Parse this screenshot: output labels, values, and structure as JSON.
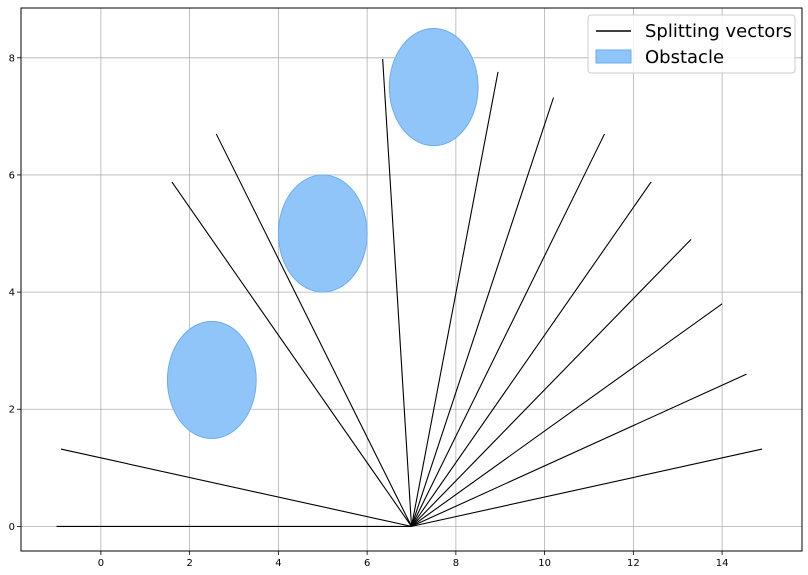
{
  "chart_data": {
    "type": "line",
    "title": "",
    "xlabel": "",
    "ylabel": "",
    "xlim": [
      -1.8,
      15.8
    ],
    "ylim": [
      -0.42,
      8.85
    ],
    "grid": true,
    "x_ticks": [
      0,
      2,
      4,
      6,
      8,
      10,
      12,
      14
    ],
    "y_ticks": [
      0,
      2,
      4,
      6,
      8
    ],
    "x_tick_labels": [
      "0",
      "2",
      "4",
      "6",
      "8",
      "10",
      "12",
      "14"
    ],
    "y_tick_labels": [
      "0",
      "2",
      "4",
      "6",
      "8"
    ],
    "origin": [
      7,
      0
    ],
    "series": [
      {
        "name": "Splitting vectors",
        "color": "#000000",
        "endpoints": [
          [
            -1.0,
            0.0
          ],
          [
            -0.9,
            1.32
          ],
          [
            1.6,
            5.88
          ],
          [
            2.6,
            6.7
          ],
          [
            6.35,
            7.98
          ],
          [
            8.95,
            7.76
          ],
          [
            10.2,
            7.32
          ],
          [
            11.35,
            6.7
          ],
          [
            12.4,
            5.88
          ],
          [
            13.3,
            4.9
          ],
          [
            14.0,
            3.8
          ],
          [
            14.55,
            2.6
          ],
          [
            14.9,
            1.32
          ]
        ]
      }
    ],
    "obstacles": {
      "name": "Obstacle",
      "color": "#90c5fa",
      "edge_color": "#6aaef0",
      "items": [
        {
          "cx": 2.5,
          "cy": 2.5,
          "r": 1.0
        },
        {
          "cx": 5.0,
          "cy": 5.0,
          "r": 1.0
        },
        {
          "cx": 7.5,
          "cy": 7.5,
          "r": 1.0
        }
      ]
    },
    "legend": {
      "placement": "top-right",
      "entries": [
        {
          "label": "Splitting vectors",
          "kind": "line",
          "color": "#000000"
        },
        {
          "label": "Obstacle",
          "kind": "patch",
          "color": "#90c5fa"
        }
      ]
    }
  }
}
